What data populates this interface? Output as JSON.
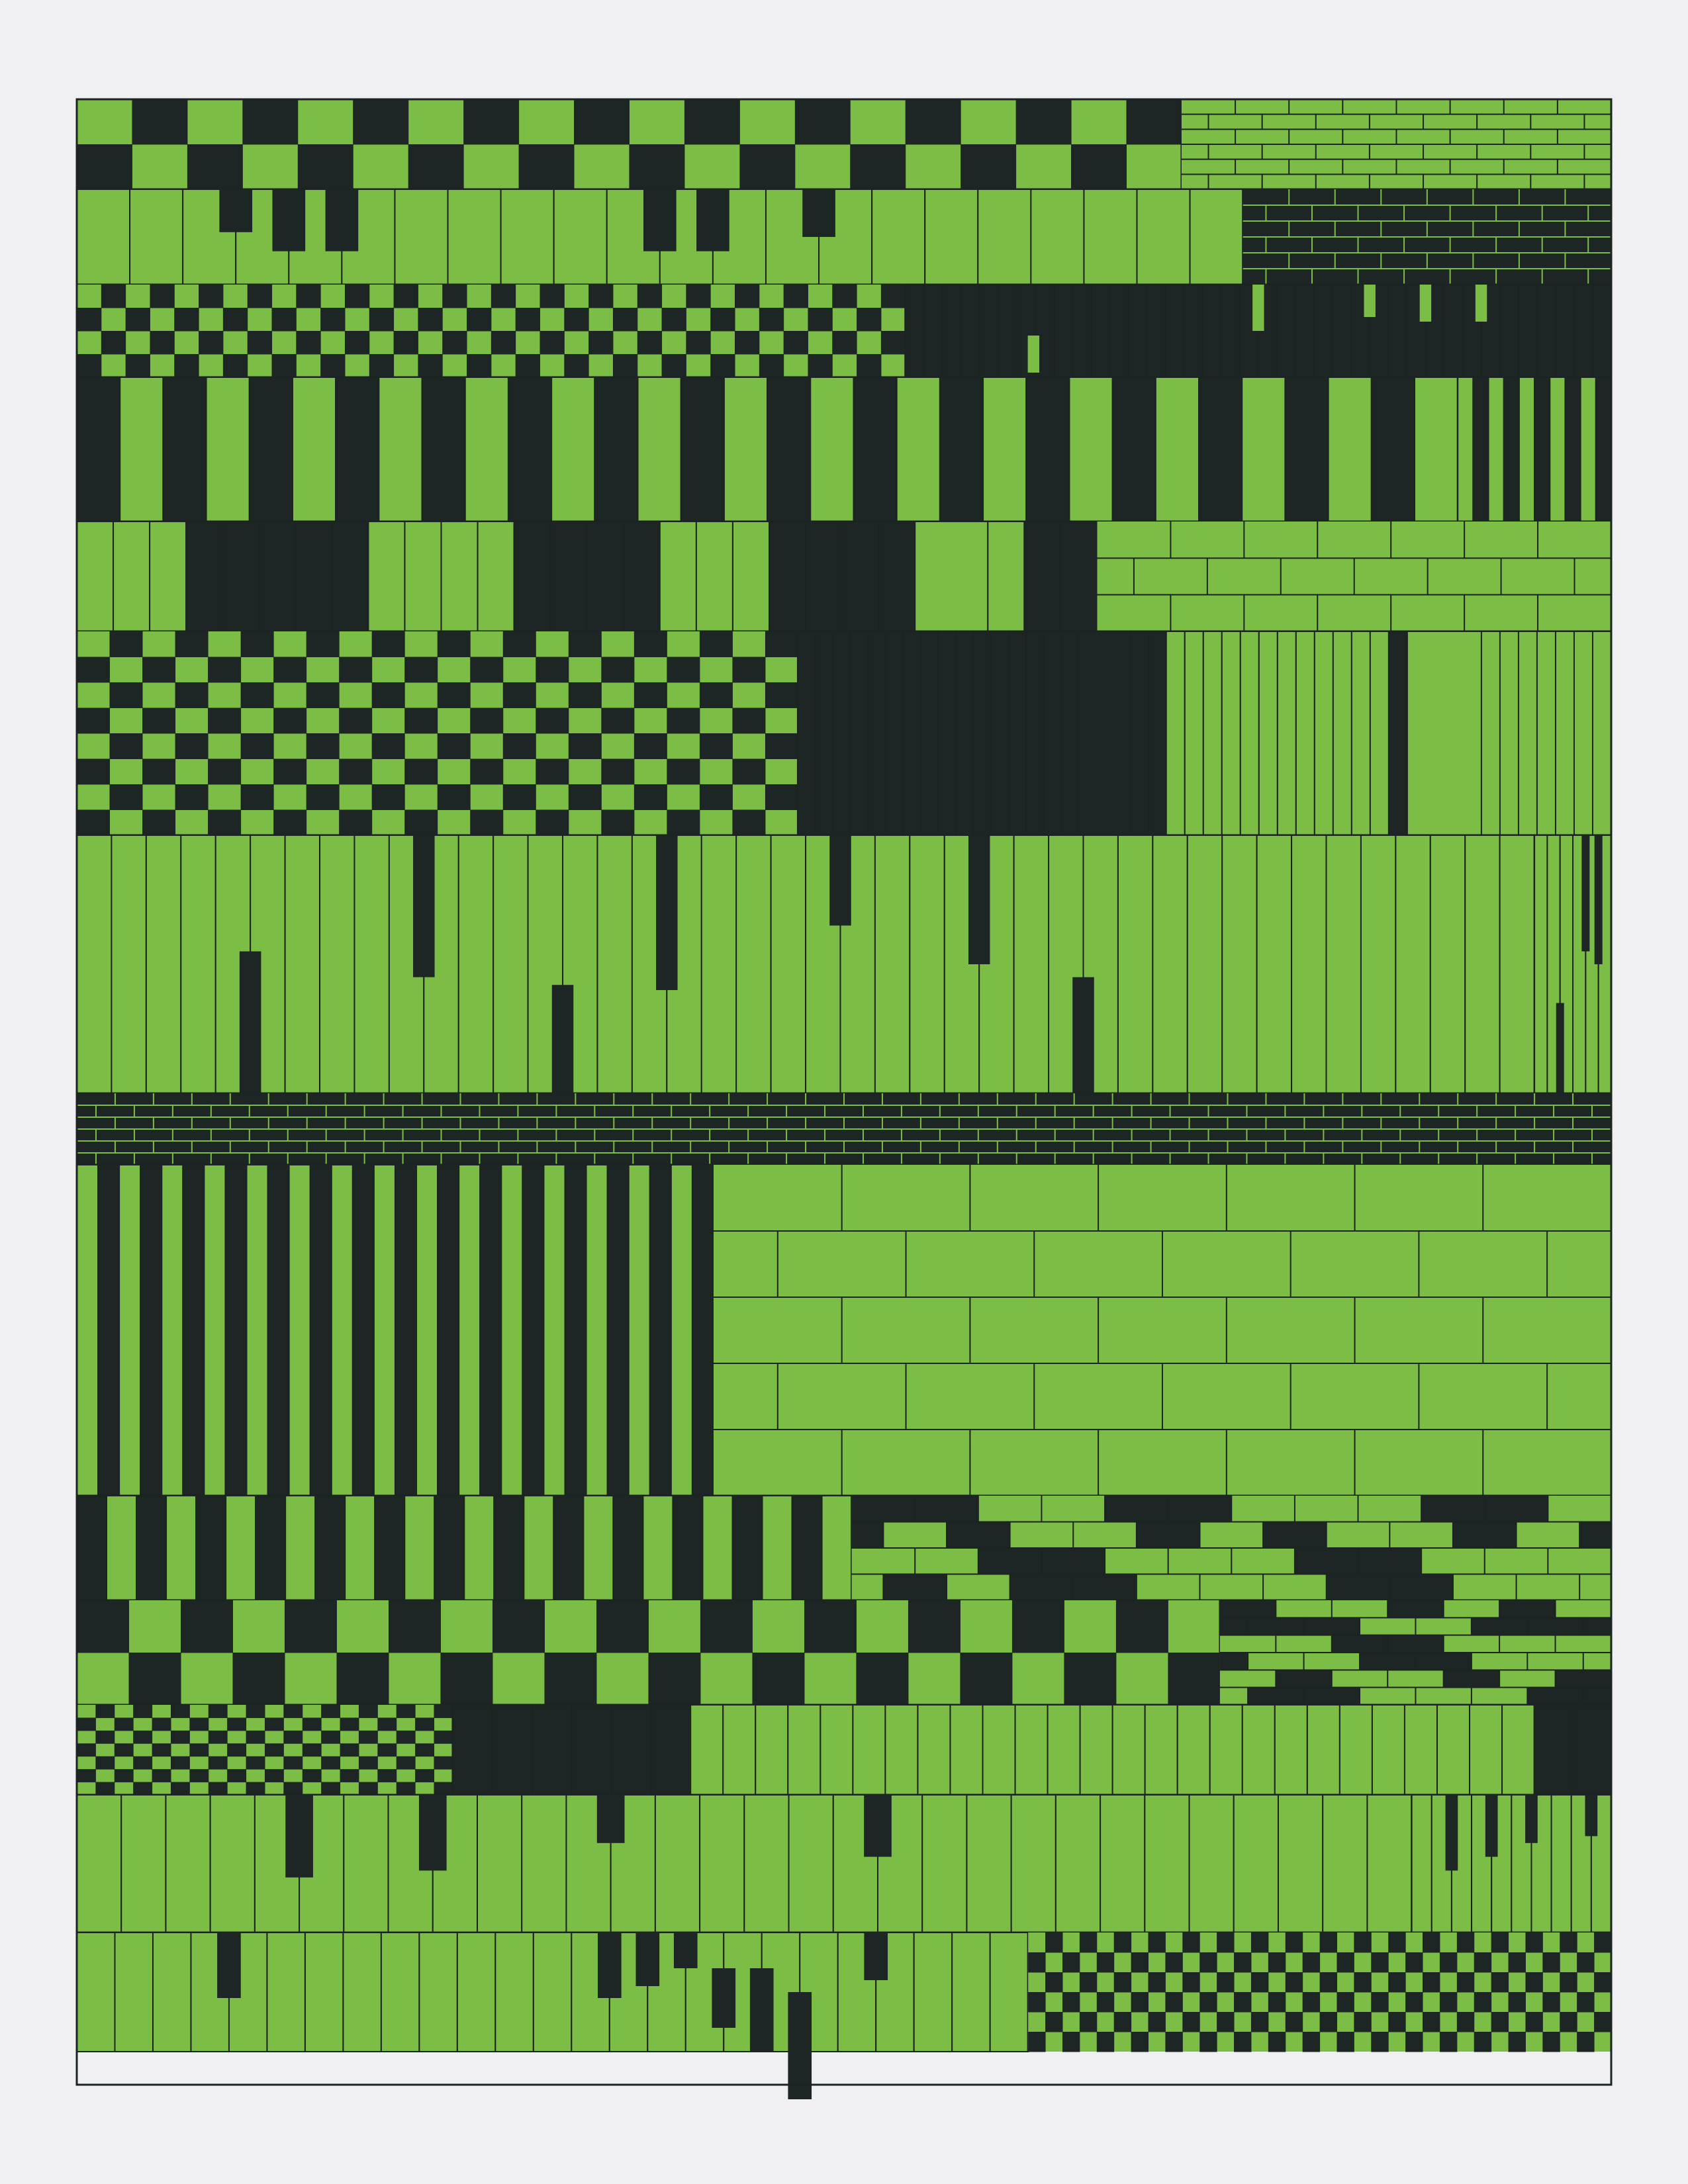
{
  "colors": {
    "paper": "#f0f0f2",
    "green": "#7bbd45",
    "dark": "#1d2624",
    "line": "#1c2422"
  },
  "artwork": {
    "rows": [
      {
        "segments": [
          {
            "pattern": "checker",
            "frac": 0.72,
            "cols": 20,
            "rows": 2,
            "phase": 0
          },
          {
            "pattern": "brick",
            "frac": 0.28,
            "rows": 6,
            "cols": 8,
            "fill": "green"
          }
        ]
      },
      {
        "segments": [
          {
            "pattern": "piano",
            "frac": 0.76,
            "keys": 22,
            "blacks": [
              {
                "k": 2.6,
                "d": 0.45
              },
              {
                "k": 3.6,
                "d": 0.65
              },
              {
                "k": 4.6,
                "d": 0.65
              },
              {
                "k": 10.6,
                "d": 0.65
              },
              {
                "k": 11.6,
                "d": 0.65
              },
              {
                "k": 13.6,
                "d": 0.5
              }
            ]
          },
          {
            "pattern": "brick",
            "frac": 0.24,
            "rows": 6,
            "cols": 8,
            "fill": "dark"
          }
        ]
      },
      {
        "segments": [
          {
            "pattern": "checker",
            "frac": 0.54,
            "cols": 34,
            "rows": 4,
            "phase": 0
          },
          {
            "pattern": "piano",
            "frac": 0.46,
            "keys": 38,
            "dark": true,
            "blacks": [
              {
                "k": 6.5,
                "d": 0.4,
                "top": 0.55
              },
              {
                "k": 18.6,
                "d": 0.5
              },
              {
                "k": 24.6,
                "d": 0.35
              },
              {
                "k": 27.6,
                "d": 0.4
              },
              {
                "k": 30.6,
                "d": 0.4
              }
            ]
          }
        ]
      },
      {
        "segments": [
          {
            "pattern": "stripes",
            "frac": 0.9,
            "count": 32,
            "phase": 1
          },
          {
            "pattern": "stripes",
            "frac": 0.1,
            "count": 10,
            "phase": 0
          }
        ]
      },
      {
        "segments": [
          {
            "pattern": "bands",
            "frac": 0.665,
            "units": [
              1,
              1,
              1,
              1,
              1,
              1,
              1,
              1,
              1,
              1,
              1,
              1,
              1,
              1,
              1,
              1,
              1,
              1,
              1,
              1,
              1,
              1,
              1,
              2,
              1,
              1,
              1
            ],
            "darks": [
              3,
              4,
              5,
              6,
              7,
              12,
              13,
              14,
              15,
              19,
              20,
              21,
              22,
              25,
              26
            ]
          },
          {
            "pattern": "brick",
            "frac": 0.335,
            "rows": 3,
            "cols": 7,
            "fill": "green"
          }
        ]
      },
      {
        "segments": [
          {
            "pattern": "checker",
            "frac": 0.47,
            "cols": 22,
            "rows": 8,
            "phase": 0
          },
          {
            "pattern": "bands",
            "frac": 0.24,
            "units": [
              1,
              1,
              1,
              1,
              1,
              1,
              1,
              1,
              1,
              1,
              1,
              1,
              1,
              1,
              1,
              1,
              3,
              1,
              1
            ],
            "darks": [
              0,
              1,
              2,
              3,
              4,
              5,
              6,
              7,
              8,
              9,
              10,
              11,
              12,
              13,
              14,
              15,
              16,
              17,
              18
            ]
          },
          {
            "pattern": "bands",
            "frac": 0.29,
            "units": [
              1,
              1,
              1,
              1,
              1,
              1,
              1,
              1,
              1,
              1,
              1,
              1,
              1,
              4,
              1,
              1,
              1,
              1,
              1,
              1,
              1
            ],
            "darks": [
              12
            ]
          }
        ]
      },
      {
        "segments": [
          {
            "pattern": "piano",
            "frac": 0.95,
            "keys": 42,
            "blacks": [
              {
                "k": 4.6,
                "d": 0.55,
                "top": 0.45
              },
              {
                "k": 9.6,
                "d": 0.55
              },
              {
                "k": 13.6,
                "d": 0.55,
                "top": 0.58
              },
              {
                "k": 16.6,
                "d": 0.6
              },
              {
                "k": 21.6,
                "d": 0.35
              },
              {
                "k": 25.6,
                "d": 0.5
              },
              {
                "k": 28.6,
                "d": 0.6,
                "top": 0.55
              }
            ]
          },
          {
            "pattern": "piano",
            "frac": 0.05,
            "keys": 6,
            "blacks": [
              {
                "k": 1.6,
                "d": 0.35,
                "top": 0.65
              },
              {
                "k": 3.6,
                "d": 0.45
              },
              {
                "k": 4.6,
                "d": 0.5
              }
            ]
          }
        ]
      },
      {
        "segments": [
          {
            "pattern": "brick",
            "frac": 1.0,
            "rows": 6,
            "cols": 40,
            "fill": "dark"
          }
        ]
      },
      {
        "segments": [
          {
            "pattern": "stripes",
            "frac": 0.415,
            "count": 30,
            "phase": 0
          },
          {
            "pattern": "brick",
            "frac": 0.585,
            "rows": 5,
            "cols": 7,
            "fill": "green"
          }
        ]
      },
      {
        "segments": [
          {
            "pattern": "stripes",
            "frac": 0.505,
            "count": 26,
            "phase": 1
          },
          {
            "pattern": "brick",
            "frac": 0.495,
            "rows": 4,
            "cols": 12,
            "fill": "mixed"
          }
        ]
      },
      {
        "segments": [
          {
            "pattern": "checker",
            "frac": 0.745,
            "cols": 22,
            "rows": 2,
            "phase": 1
          },
          {
            "pattern": "brick",
            "frac": 0.255,
            "rows": 6,
            "cols": 7,
            "fill": "mixed"
          }
        ]
      },
      {
        "segments": [
          {
            "pattern": "checker",
            "frac": 0.245,
            "cols": 20,
            "rows": 7,
            "phase": 0
          },
          {
            "pattern": "bands",
            "frac": 0.155,
            "units": [
              1,
              1,
              1,
              1,
              1,
              1
            ],
            "darks": [
              0,
              1,
              2,
              3,
              4,
              5
            ]
          },
          {
            "pattern": "bands",
            "frac": 0.55,
            "units": [
              1,
              1,
              1,
              1,
              1,
              1,
              1,
              1,
              1,
              1,
              1,
              1,
              1,
              1,
              1,
              1,
              1,
              1,
              1,
              1,
              1,
              1,
              1,
              1,
              1,
              1
            ],
            "darks": []
          },
          {
            "pattern": "bands",
            "frac": 0.05,
            "units": [
              1,
              1
            ],
            "darks": [
              0,
              1
            ]
          }
        ]
      },
      {
        "segments": [
          {
            "pattern": "piano",
            "frac": 0.87,
            "keys": 30,
            "blacks": [
              {
                "k": 4.6,
                "d": 0.6
              },
              {
                "k": 7.6,
                "d": 0.55
              },
              {
                "k": 11.6,
                "d": 0.35
              },
              {
                "k": 17.6,
                "d": 0.45
              }
            ]
          },
          {
            "pattern": "piano",
            "frac": 0.13,
            "keys": 10,
            "blacks": [
              {
                "k": 1.6,
                "d": 0.55
              },
              {
                "k": 3.6,
                "d": 0.45
              },
              {
                "k": 5.6,
                "d": 0.35
              },
              {
                "k": 8.6,
                "d": 0.3
              }
            ]
          }
        ]
      },
      {
        "segments": [
          {
            "pattern": "piano",
            "frac": 0.62,
            "keys": 25,
            "blacks": [
              {
                "k": 3.6,
                "d": 0.55
              },
              {
                "k": 13.6,
                "d": 0.55
              },
              {
                "k": 14.6,
                "d": 0.45
              },
              {
                "k": 15.6,
                "d": 0.3
              },
              {
                "k": 16.6,
                "d": 0.5,
                "top": 0.3
              },
              {
                "k": 17.6,
                "d": 0.7,
                "top": 0.3
              },
              {
                "k": 18.6,
                "d": 0.9,
                "top": 0.5
              },
              {
                "k": 20.6,
                "d": 0.4
              }
            ]
          },
          {
            "pattern": "checker",
            "frac": 0.38,
            "cols": 34,
            "rows": 6,
            "phase": 0
          }
        ]
      }
    ]
  }
}
